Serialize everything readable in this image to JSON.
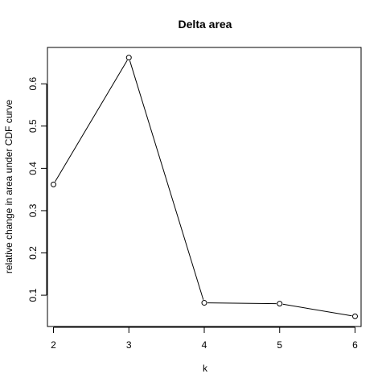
{
  "chart_data": {
    "type": "line",
    "title": "Delta area",
    "xlabel": "k",
    "ylabel": "relative change in area under CDF curve",
    "x": [
      2,
      3,
      4,
      5,
      6
    ],
    "y": [
      0.362,
      0.662,
      0.082,
      0.08,
      0.05
    ],
    "xlim": [
      1.92,
      6.08
    ],
    "ylim": [
      0.026,
      0.686
    ],
    "xticks": [
      2,
      3,
      4,
      5,
      6
    ],
    "yticks": [
      0.1,
      0.2,
      0.3,
      0.4,
      0.5,
      0.6
    ],
    "xtick_labels": [
      "2",
      "3",
      "4",
      "5",
      "6"
    ],
    "ytick_labels": [
      "0.1",
      "0.2",
      "0.3",
      "0.4",
      "0.5",
      "0.6"
    ],
    "markers": "open-circle",
    "grid": false,
    "legend": "none"
  },
  "colors": {
    "line": "#000000",
    "background": "#ffffff"
  }
}
